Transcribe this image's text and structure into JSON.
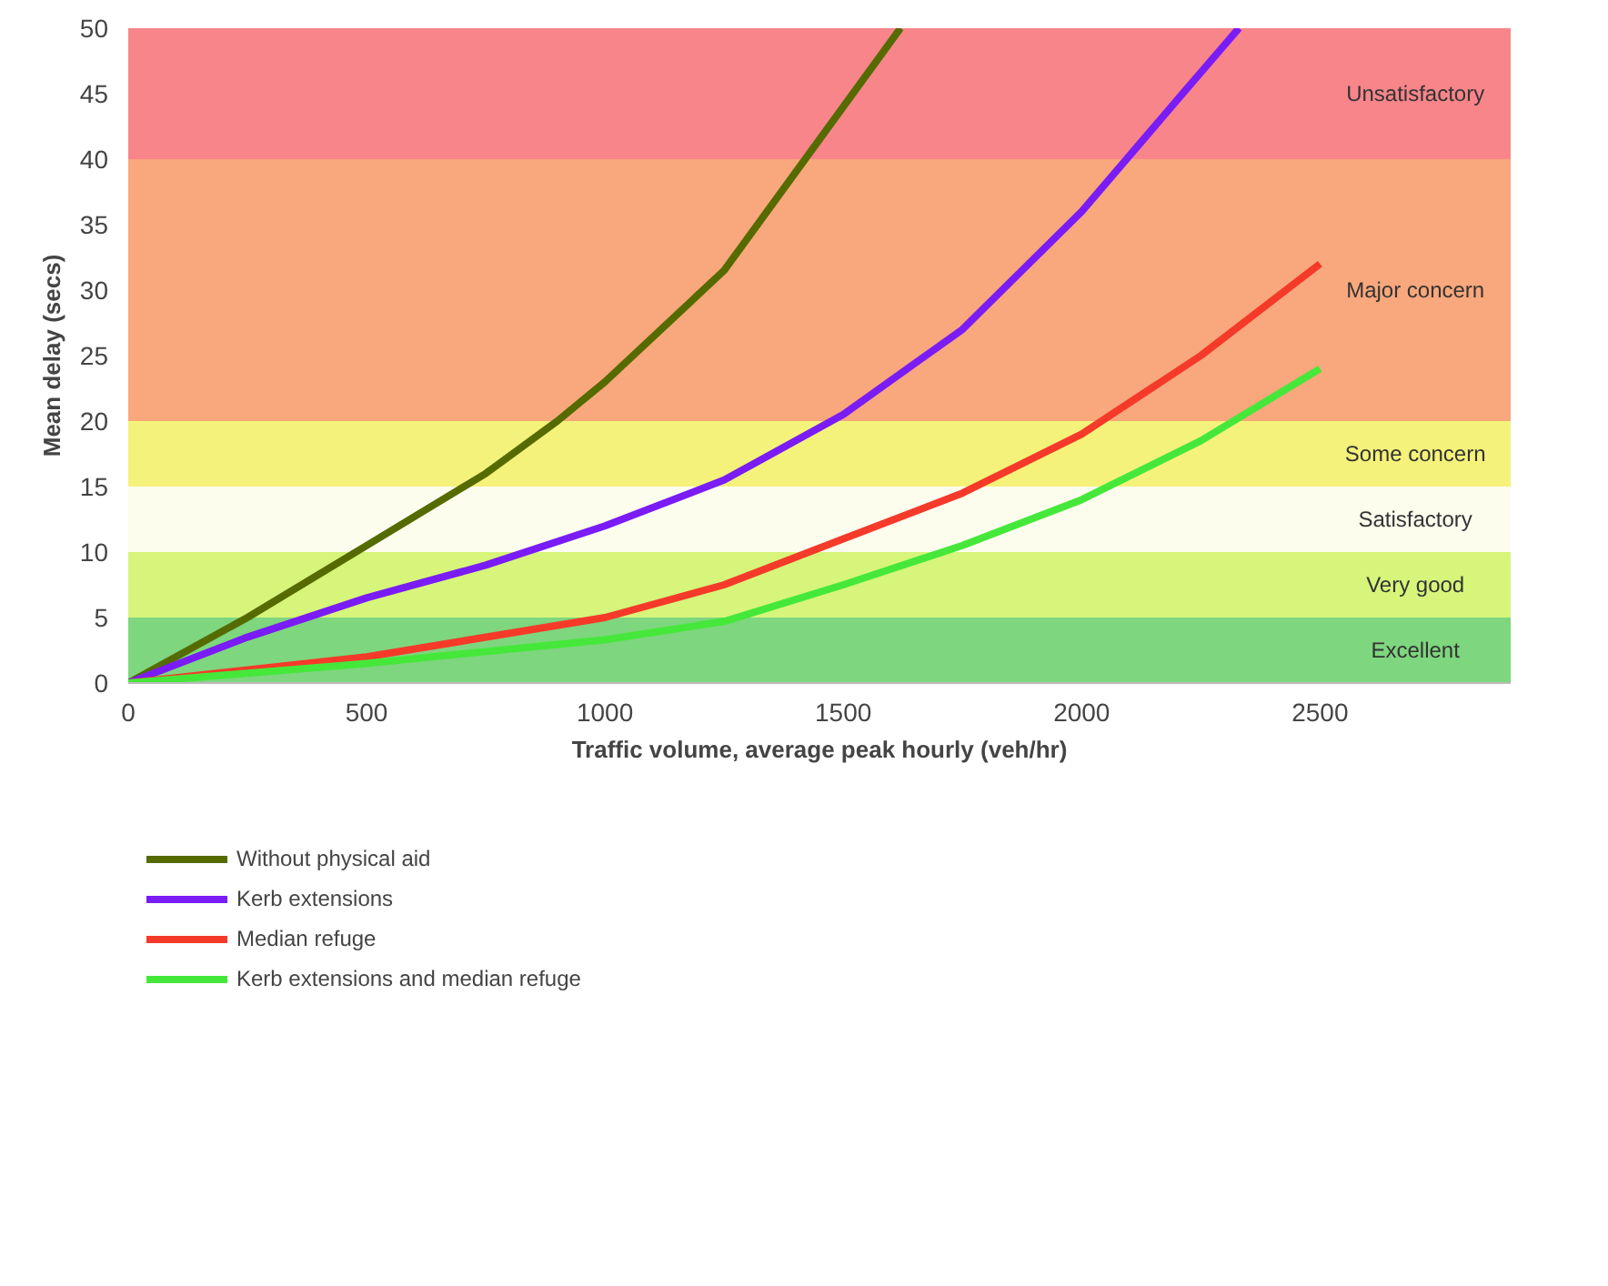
{
  "chart_data": {
    "type": "line",
    "xlabel": "Traffic volume, average peak hourly (veh/hr)",
    "ylabel": "Mean delay (secs)",
    "xlim": [
      0,
      2900
    ],
    "xticks": [
      0,
      500,
      1000,
      1500,
      2000,
      2500
    ],
    "ylim": [
      0,
      50
    ],
    "yticks": [
      0,
      5,
      10,
      15,
      20,
      25,
      30,
      35,
      40,
      45,
      50
    ],
    "legend": "bottom",
    "line_style": "solid",
    "marker": "none",
    "series": [
      {
        "name": "Without physical aid",
        "color": "#556b00",
        "x": [
          0,
          250,
          500,
          750,
          900,
          1000,
          1250,
          1400,
          1500,
          1620
        ],
        "values": [
          0,
          5,
          10.5,
          16,
          20,
          23,
          31.5,
          39,
          44,
          50
        ]
      },
      {
        "name": "Kerb extensions",
        "color": "#7a1cf5",
        "x": [
          0,
          250,
          500,
          750,
          1000,
          1250,
          1500,
          1750,
          2000,
          2200,
          2330
        ],
        "values": [
          0,
          3.5,
          6.5,
          9,
          12,
          15.5,
          20.5,
          27,
          36,
          44.5,
          50
        ]
      },
      {
        "name": "Median refuge",
        "color": "#f53a2a",
        "x": [
          0,
          500,
          1000,
          1250,
          1500,
          1750,
          2000,
          2250,
          2500
        ],
        "values": [
          0,
          2,
          5,
          7.5,
          11,
          14.5,
          19,
          25,
          32
        ]
      },
      {
        "name": "Kerb extensions and median refuge",
        "color": "#45e83a",
        "x": [
          0,
          500,
          1000,
          1250,
          1500,
          1750,
          2000,
          2250,
          2500
        ],
        "values": [
          0,
          1.5,
          3.3,
          4.7,
          7.5,
          10.5,
          14,
          18.5,
          24
        ]
      }
    ],
    "bands": [
      {
        "axis": "y",
        "from": 0,
        "to": 5,
        "label": "Excellent",
        "color": "#7ed67e"
      },
      {
        "axis": "y",
        "from": 5,
        "to": 10,
        "label": "Very good",
        "color": "#d6f57a"
      },
      {
        "axis": "y",
        "from": 10,
        "to": 15,
        "label": "Satisfactory",
        "color": "#fdfdee"
      },
      {
        "axis": "y",
        "from": 15,
        "to": 20,
        "label": "Some concern",
        "color": "#f4f27a"
      },
      {
        "axis": "y",
        "from": 20,
        "to": 40,
        "label": "Major concern",
        "color": "#f9a77c"
      },
      {
        "axis": "y",
        "from": 40,
        "to": 50,
        "label": "Unsatisfactory",
        "color": "#f7858a"
      }
    ]
  }
}
